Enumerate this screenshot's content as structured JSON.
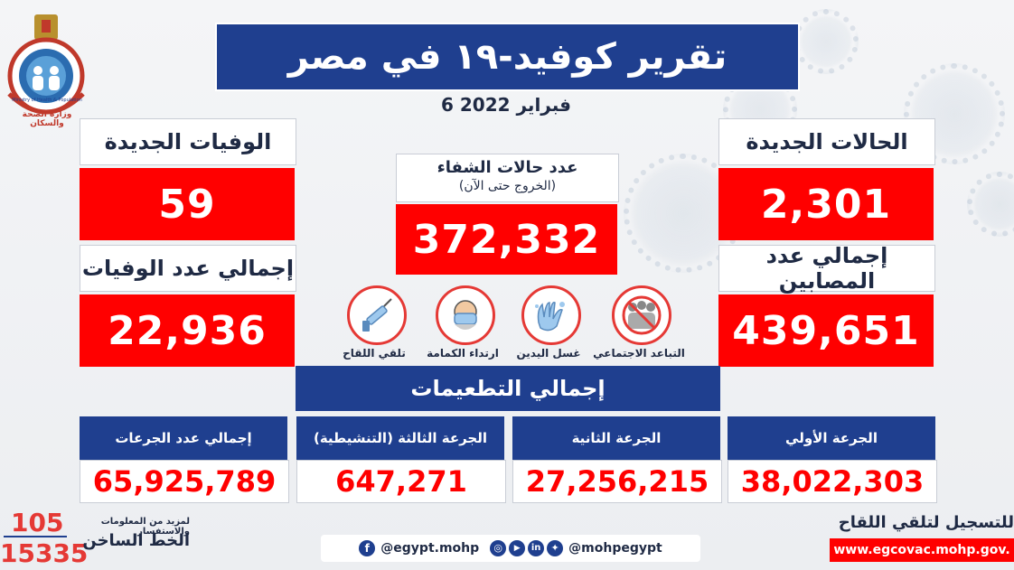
{
  "header": {
    "title": "تقرير كوفيد-١٩ في مصر",
    "date": "6 فبراير 2022"
  },
  "logo": {
    "text": "Ministry of Health & Population",
    "arabic": "وزارة الصحة والسكان"
  },
  "stats": {
    "new_cases_label": "الحالات الجديدة",
    "new_cases_value": "2,301",
    "total_cases_label": "إجمالي عدد المصابين",
    "total_cases_value": "439,651",
    "new_deaths_label": "الوفيات الجديدة",
    "new_deaths_value": "59",
    "total_deaths_label": "إجمالي عدد الوفيات",
    "total_deaths_value": "22,936",
    "recovered_label": "عدد حالات الشفاء",
    "recovered_sublabel": "(الخروج حتى الآن)",
    "recovered_value": "372,332"
  },
  "icons": [
    {
      "name": "social-distancing",
      "label": "التباعد الاجتماعي"
    },
    {
      "name": "hand-washing",
      "label": "غسل اليدين"
    },
    {
      "name": "face-mask",
      "label": "ارتداء الكمامة"
    },
    {
      "name": "vaccine",
      "label": "تلقي اللقاح"
    }
  ],
  "vaccinations": {
    "title": "إجمالي التطعيمات",
    "first_label": "الجرعة الأولي",
    "first_value": "38,022,303",
    "second_label": "الجرعة الثانية",
    "second_value": "27,256,215",
    "third_label": "الجرعة الثالثة (التنشيطية)",
    "third_value": "647,271",
    "total_label": "إجمالي عدد الجرعات",
    "total_value": "65,925,789"
  },
  "footer": {
    "hotline_num1": "105",
    "hotline_num2": "15335",
    "hotline_info": "لمزيد من المعلومات والاستفسار",
    "hotline_label": "الخط الساخن",
    "facebook": "@egypt.mohp",
    "social": "@mohpegypt",
    "register_label": "للتسجيل لتلقي اللقاح",
    "register_url": "www.egcovac.mohp.gov."
  },
  "colors": {
    "brand_blue": "#1f3f8f",
    "alert_red": "#ff0000"
  }
}
